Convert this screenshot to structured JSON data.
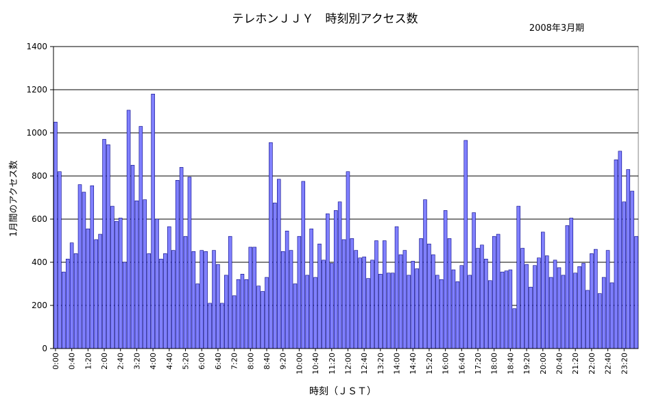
{
  "chart_data": {
    "type": "bar",
    "title": "テレホンＪＪＹ　時刻別アクセス数",
    "subtitle": "2008年3月期",
    "xlabel": "時刻（ＪＳＴ）",
    "ylabel": "1月間のアクセス数",
    "ylim": [
      0,
      1400
    ],
    "yticks": [
      0,
      200,
      400,
      600,
      800,
      1000,
      1200,
      1400
    ],
    "grid": true,
    "bar_color": "#8080ff",
    "bar_stroke": "#000080",
    "x_tick_labels": [
      "0:00",
      "0:40",
      "1:20",
      "2:00",
      "2:40",
      "3:20",
      "4:00",
      "4:40",
      "5:20",
      "6:00",
      "6:40",
      "7:20",
      "8:00",
      "8:40",
      "9:20",
      "10:00",
      "10:40",
      "11:20",
      "12:00",
      "12:40",
      "13:20",
      "14:00",
      "14:40",
      "15:20",
      "16:00",
      "16:40",
      "17:20",
      "18:00",
      "18:40",
      "19:20",
      "20:00",
      "20:40",
      "21:20",
      "22:00",
      "22:40",
      "23:20"
    ],
    "x_tick_every": 4,
    "interval_minutes": 10,
    "values": [
      1050,
      820,
      355,
      415,
      490,
      440,
      760,
      725,
      555,
      755,
      505,
      530,
      970,
      945,
      660,
      590,
      605,
      400,
      1105,
      850,
      685,
      1030,
      690,
      440,
      1180,
      600,
      415,
      440,
      565,
      455,
      780,
      840,
      520,
      795,
      450,
      300,
      455,
      450,
      210,
      455,
      390,
      210,
      340,
      520,
      245,
      320,
      345,
      320,
      470,
      470,
      290,
      265,
      330,
      955,
      675,
      785,
      450,
      545,
      455,
      300,
      520,
      775,
      340,
      555,
      330,
      485,
      410,
      625,
      395,
      640,
      680,
      505,
      820,
      510,
      455,
      420,
      425,
      325,
      410,
      500,
      345,
      500,
      350,
      350,
      565,
      435,
      455,
      340,
      405,
      370,
      510,
      690,
      485,
      435,
      340,
      320,
      640,
      510,
      365,
      310,
      385,
      965,
      340,
      630,
      465,
      480,
      415,
      315,
      520,
      530,
      355,
      360,
      365,
      185,
      660,
      465,
      390,
      285,
      385,
      420,
      540,
      430,
      330,
      410,
      375,
      340,
      570,
      605,
      350,
      380,
      395,
      270,
      440,
      460,
      255,
      330,
      455,
      305,
      875,
      915,
      680,
      830,
      730,
      520
    ]
  }
}
